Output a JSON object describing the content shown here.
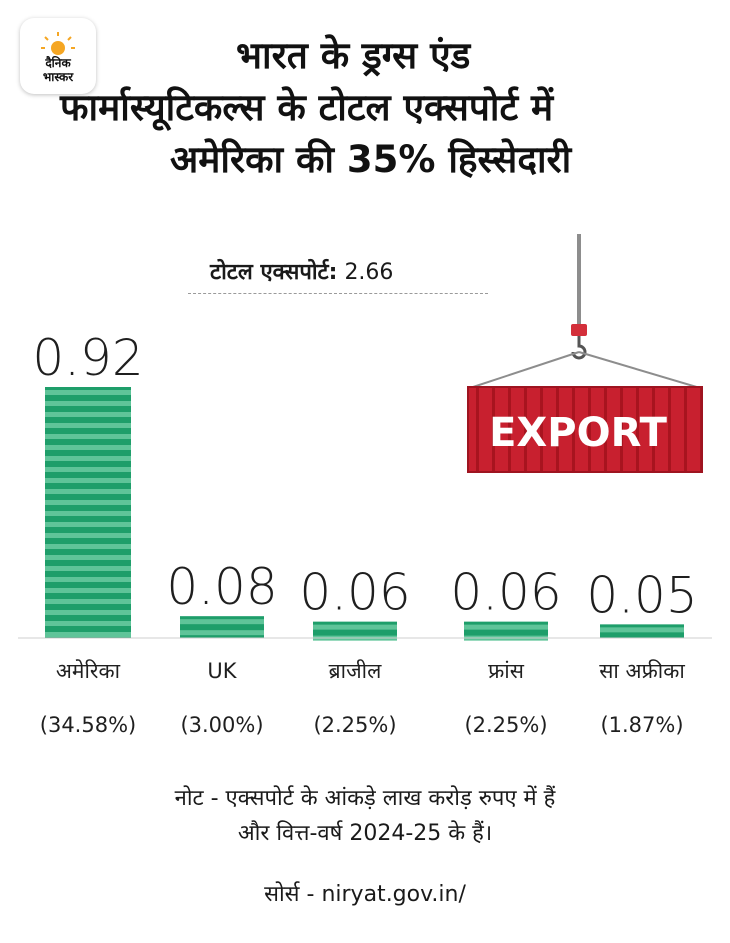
{
  "logo": {
    "line1": "दैनिक",
    "line2": "भास्कर"
  },
  "title_lines": [
    "भारत के ड्रग्स एंड",
    "फार्मास्यूटिकल्स के टोटल एक्सपोर्ट में",
    "अमेरिका की 35% हिस्सेदारी"
  ],
  "total": {
    "label": "टोटल एक्सपोर्ट:",
    "value": "2.66"
  },
  "illustration": {
    "sign_text": "EXPORT",
    "sign_color": "#c8202f"
  },
  "chart_data": {
    "type": "bar",
    "categories": [
      "अमेरिका",
      "UK",
      "ब्राजील",
      "फ्रांस",
      "सा अफ्रीका"
    ],
    "values": [
      0.92,
      0.08,
      0.06,
      0.06,
      0.05
    ],
    "value_labels": [
      "0.92",
      "0.08",
      "0.06",
      "0.06",
      "0.05"
    ],
    "shares": [
      "(34.58%)",
      "(3.00%)",
      "(2.25%)",
      "(2.25%)",
      "(1.87%)"
    ],
    "ylim": [
      0,
      0.92
    ],
    "grid": false,
    "colors": {
      "bar": "#1e9e6a",
      "stripe": "#5fc499"
    }
  },
  "notes": [
    "नोट - एक्सपोर्ट के आंकड़े लाख करोड़ रुपए में हैं",
    "और वित्त-वर्ष 2024-25 के हैं।"
  ],
  "source": "सोर्स - niryat.gov.in/"
}
